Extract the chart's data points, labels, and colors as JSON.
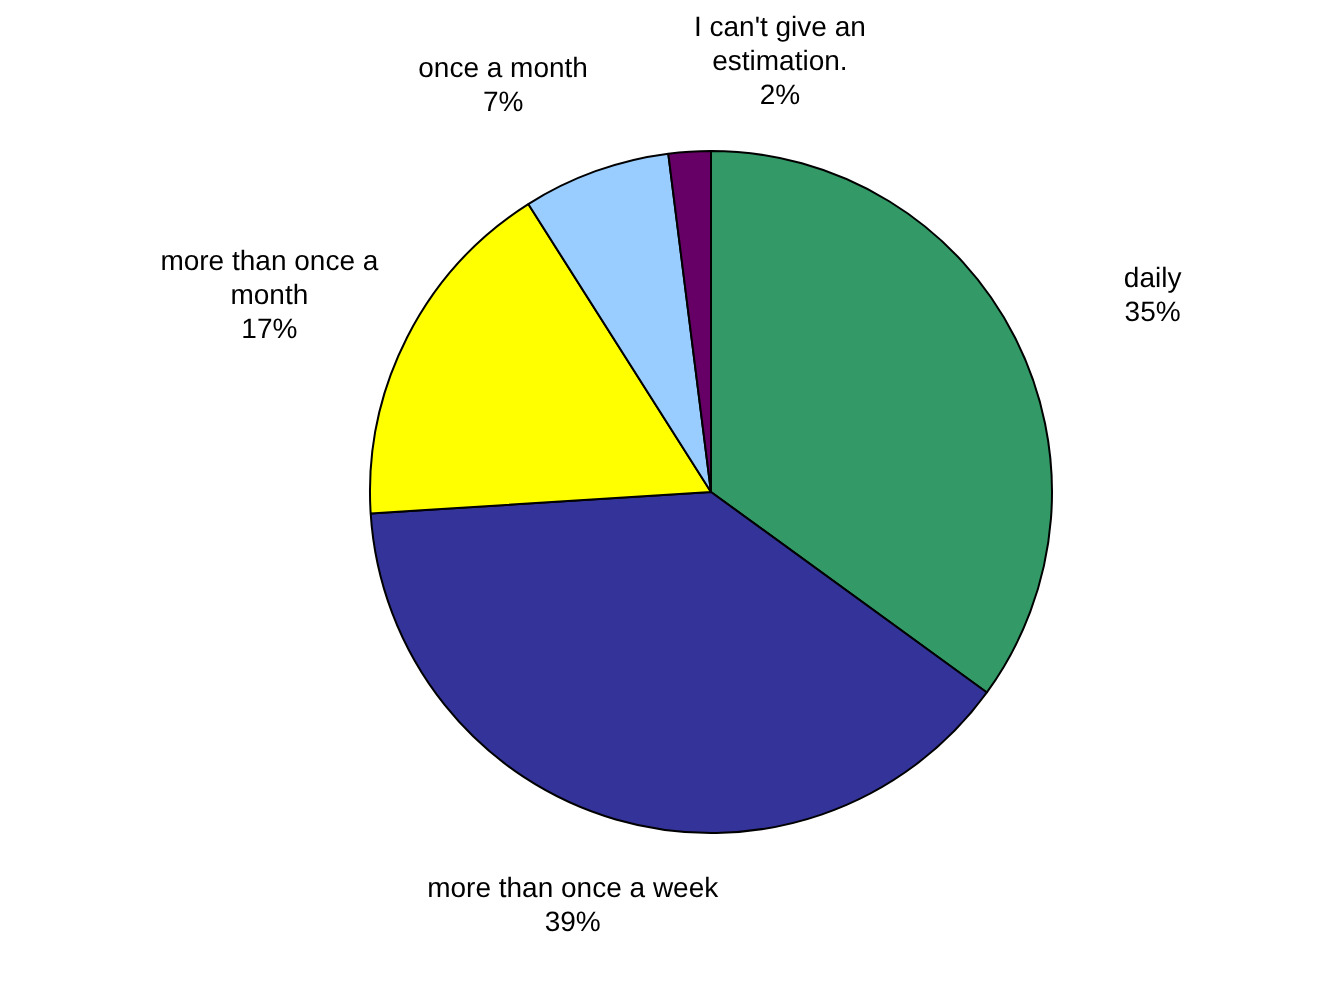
{
  "chart_data": {
    "type": "pie",
    "categories": [
      "daily",
      "more than once a week",
      "more than once a month",
      "once a month",
      "I can't give an estimation."
    ],
    "values": [
      35,
      39,
      17,
      7,
      2
    ],
    "colors": [
      "#339966",
      "#333399",
      "#ffff00",
      "#99ccff",
      "#660066"
    ],
    "value_labels": [
      "35%",
      "39%",
      "17%",
      "7%",
      "2%"
    ],
    "legend": false
  }
}
